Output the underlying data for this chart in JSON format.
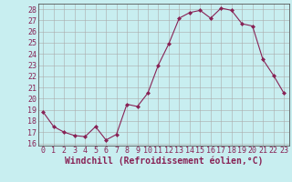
{
  "x": [
    0,
    1,
    2,
    3,
    4,
    5,
    6,
    7,
    8,
    9,
    10,
    11,
    12,
    13,
    14,
    15,
    16,
    17,
    18,
    19,
    20,
    21,
    22,
    23
  ],
  "y": [
    18.8,
    17.5,
    17.0,
    16.7,
    16.6,
    17.5,
    16.3,
    16.8,
    19.5,
    19.3,
    20.5,
    23.0,
    24.9,
    27.2,
    27.7,
    27.9,
    27.2,
    28.1,
    27.9,
    26.7,
    26.5,
    23.5,
    22.1,
    20.5
  ],
  "line_color": "#882255",
  "marker": "D",
  "marker_size": 2,
  "bg_color": "#c8eef0",
  "grid_color": "#aaaaaa",
  "xlabel": "Windchill (Refroidissement éolien,°C)",
  "xlabel_fontsize": 7,
  "tick_fontsize": 6,
  "ylim_min": 15.8,
  "ylim_max": 28.5,
  "yticks": [
    16,
    17,
    18,
    19,
    20,
    21,
    22,
    23,
    24,
    25,
    26,
    27,
    28
  ],
  "xticks": [
    0,
    1,
    2,
    3,
    4,
    5,
    6,
    7,
    8,
    9,
    10,
    11,
    12,
    13,
    14,
    15,
    16,
    17,
    18,
    19,
    20,
    21,
    22,
    23
  ],
  "spine_color": "#555555"
}
